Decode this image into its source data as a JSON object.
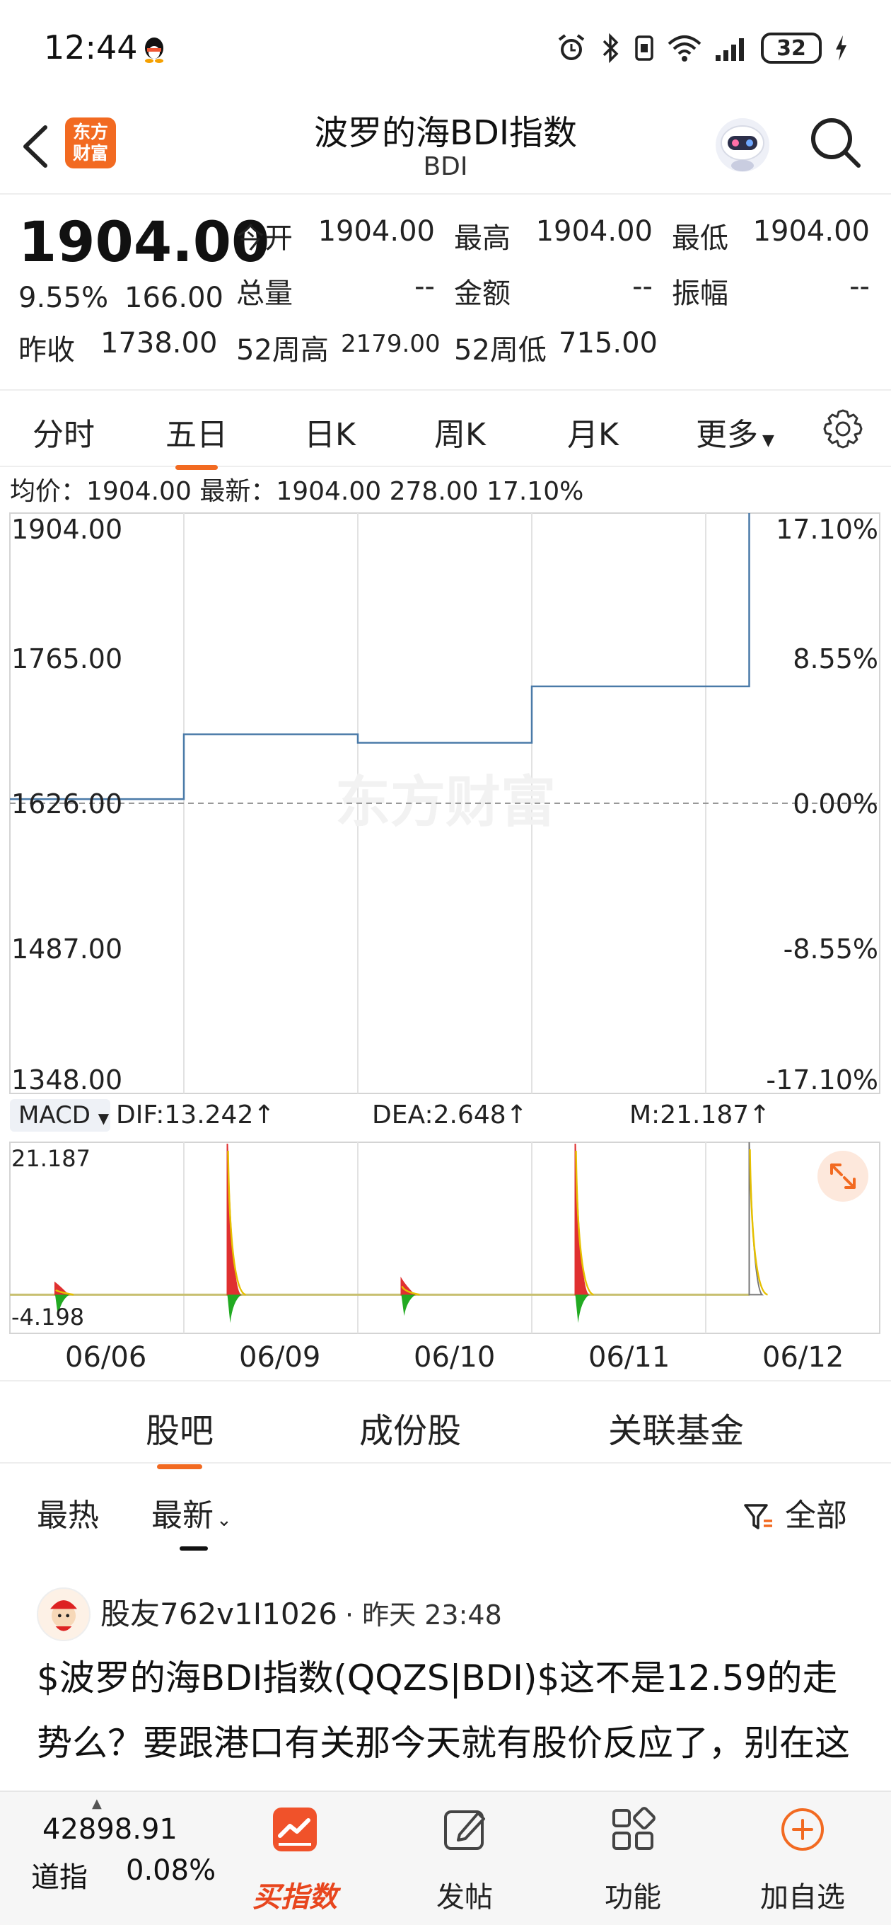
{
  "status_bar": {
    "time": "12:44",
    "battery": "32"
  },
  "header": {
    "title": "波罗的海BDI指数",
    "code": "BDI",
    "logo_text": "东方财富"
  },
  "quote": {
    "price": "1904.00",
    "change_pct": "9.55%",
    "change": "166.00",
    "prev_close_label": "昨收",
    "prev_close": "1738.00",
    "fields": [
      {
        "label": "今开",
        "value": "1904.00"
      },
      {
        "label": "最高",
        "value": "1904.00"
      },
      {
        "label": "最低",
        "value": "1904.00"
      },
      {
        "label": "总量",
        "value": "--"
      },
      {
        "label": "金额",
        "value": "--"
      },
      {
        "label": "振幅",
        "value": "--"
      }
    ],
    "week52_high_label": "52周高",
    "week52_high": "2179.00",
    "week52_low_label": "52周低",
    "week52_low": "715.00"
  },
  "tabs": [
    "分时",
    "五日",
    "日K",
    "周K",
    "月K",
    "更多"
  ],
  "active_tab": "五日",
  "info_line": "均价：1904.00  最新：1904.00  278.00  17.10%",
  "chart_data": {
    "type": "line",
    "title": "",
    "x_categories": [
      "06/06",
      "06/09",
      "06/10",
      "06/11",
      "06/12"
    ],
    "y_left_ticks": [
      "1904.00",
      "1765.00",
      "1626.00",
      "1487.00",
      "1348.00"
    ],
    "y_right_ticks": [
      "17.10%",
      "8.55%",
      "0.00%",
      "-8.55%",
      "-17.10%"
    ],
    "ylim": [
      1348,
      1904
    ],
    "baseline": 1626,
    "series": [
      {
        "values": [
          1630,
          1692,
          1684,
          1738,
          1904
        ]
      }
    ],
    "macd": {
      "selector": "MACD",
      "dif": "DIF:13.242↑",
      "dea": "DEA:2.648↑",
      "m": "M:21.187↑",
      "ymax_label": "21.187",
      "ymin_label": "-4.198",
      "ylim": [
        -4.198,
        21.187
      ],
      "spikes": [
        {
          "day": 0,
          "value": 2.5
        },
        {
          "day": 1,
          "value": 21.0
        },
        {
          "day": 2,
          "value": 3.0
        },
        {
          "day": 3,
          "value": 21.0
        },
        {
          "day": 4,
          "value": 21.187
        }
      ]
    }
  },
  "colors": {
    "accent": "#f26a21",
    "line": "#4a7aa8",
    "up": "#e03030",
    "down": "#22aa22",
    "dea": "#e6c000"
  },
  "section_tabs": [
    "股吧",
    "成份股",
    "关联基金"
  ],
  "sort": {
    "hot": "最热",
    "latest": "最新",
    "filter": "全部"
  },
  "post": {
    "user": "股友762v1I1026",
    "time": "昨天 23:48",
    "text": "$波罗的海BDI指数(QQZS|BDI)$这不是12.59的走势么？要跟港口有关那今天就有股价反应了，别在这瞎唱多"
  },
  "bottom": {
    "index_value": "42898.91",
    "index_name": "道指",
    "index_change": "0.08%",
    "nav": [
      "买指数",
      "发帖",
      "功能",
      "加自选"
    ]
  }
}
